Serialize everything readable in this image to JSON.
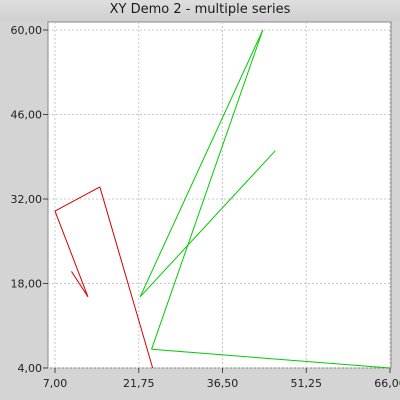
{
  "window": {
    "title": "XY Demo 2 - multiple series"
  },
  "chart_data": {
    "type": "line",
    "title": "XY Demo 2 - multiple series",
    "xlabel": "",
    "ylabel": "",
    "xlim": [
      7.0,
      66.0
    ],
    "ylim": [
      4.0,
      60.0
    ],
    "x_ticks": [
      "7,00",
      "21,75",
      "36,50",
      "51,25",
      "66,00"
    ],
    "y_ticks": [
      "4,00",
      "18,00",
      "32,00",
      "46,00",
      "60,00"
    ],
    "x_tick_values": [
      7.0,
      21.75,
      36.5,
      51.25,
      66.0
    ],
    "y_tick_values": [
      4.0,
      18.0,
      32.0,
      46.0,
      60.0
    ],
    "grid": true,
    "series": [
      {
        "color": "#d40000",
        "points": [
          [
            9.9,
            20.0
          ],
          [
            12.8,
            15.8
          ],
          [
            7.0,
            30.0
          ],
          [
            14.9,
            34.0
          ],
          [
            24.2,
            4.0
          ]
        ]
      },
      {
        "color": "#00cc00",
        "points": [
          [
            45.8,
            40.0
          ],
          [
            22.0,
            15.8
          ],
          [
            43.6,
            60.0
          ],
          [
            24.0,
            7.1
          ],
          [
            66.0,
            4.0
          ]
        ]
      }
    ]
  }
}
